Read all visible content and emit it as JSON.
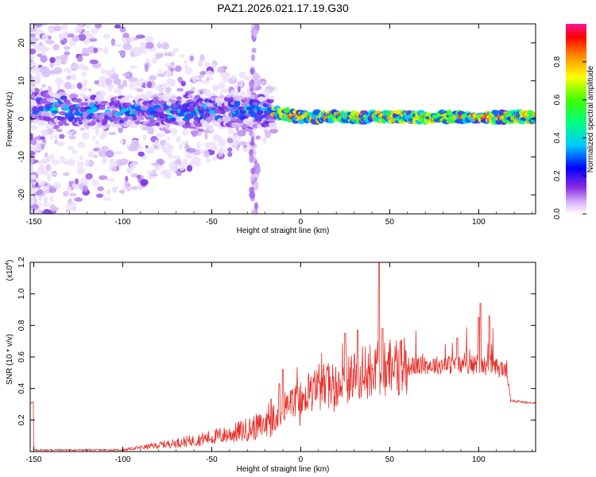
{
  "title": "PAZ1.2026.021.17.19.G30",
  "chart_data": [
    {
      "type": "heatmap",
      "xlabel": "Height of straight line (km)",
      "ylabel": "Frequency (Hz)",
      "xlim": [
        -152,
        132
      ],
      "ylim": [
        -25,
        25
      ],
      "xticks": [
        -150,
        -100,
        -50,
        0,
        50,
        100
      ],
      "yticks": [
        -20,
        -10,
        0,
        10,
        20
      ],
      "colorbar": {
        "label": "Normalized spectral amplitude",
        "range": [
          0,
          1
        ],
        "ticks": [
          0.0,
          0.2,
          0.4,
          0.6,
          0.8
        ],
        "colors": [
          "#ffffff",
          "#8a2be2",
          "#0000ff",
          "#00e5ff",
          "#00ff00",
          "#ffff00",
          "#ff8000",
          "#ff0000",
          "#ff1493"
        ]
      },
      "ridge": {
        "description": "main signal band",
        "points": [
          [
            -150,
            3
          ],
          [
            -100,
            2
          ],
          [
            -50,
            2
          ],
          [
            -20,
            2
          ],
          [
            0,
            0.5
          ],
          [
            50,
            0.5
          ],
          [
            100,
            0.5
          ],
          [
            130,
            0.5
          ]
        ]
      }
    },
    {
      "type": "line",
      "xlabel": "Height of straight line (km)",
      "ylabel": "SNR (10 * v/v)",
      "ymultiplier": "(x10^4)",
      "xlim": [
        -152,
        132
      ],
      "ylim": [
        0,
        1.2
      ],
      "xticks": [
        -150,
        -100,
        -50,
        0,
        50,
        100
      ],
      "yticks": [
        0.2,
        0.4,
        0.6,
        0.8,
        1.0,
        1.2
      ],
      "line_color": "#e8302a",
      "envelope": [
        [
          -150,
          0.01
        ],
        [
          -100,
          0.01
        ],
        [
          -80,
          0.04
        ],
        [
          -60,
          0.07
        ],
        [
          -40,
          0.11
        ],
        [
          -20,
          0.17
        ],
        [
          -15,
          0.2
        ],
        [
          -10,
          0.25
        ],
        [
          -5,
          0.3
        ],
        [
          5,
          0.38
        ],
        [
          15,
          0.42
        ],
        [
          30,
          0.48
        ],
        [
          45,
          0.53
        ],
        [
          60,
          0.54
        ],
        [
          80,
          0.55
        ],
        [
          100,
          0.55
        ],
        [
          116,
          0.52
        ],
        [
          118,
          0.32
        ],
        [
          132,
          0.31
        ]
      ],
      "peaks": [
        [
          -12,
          0.43
        ],
        [
          -10,
          0.52
        ],
        [
          25,
          0.75
        ],
        [
          32,
          0.77
        ],
        [
          44,
          1.2
        ],
        [
          46,
          0.78
        ],
        [
          88,
          0.72
        ],
        [
          100,
          0.85
        ],
        [
          101,
          0.94
        ],
        [
          106,
          0.86
        ]
      ]
    }
  ]
}
